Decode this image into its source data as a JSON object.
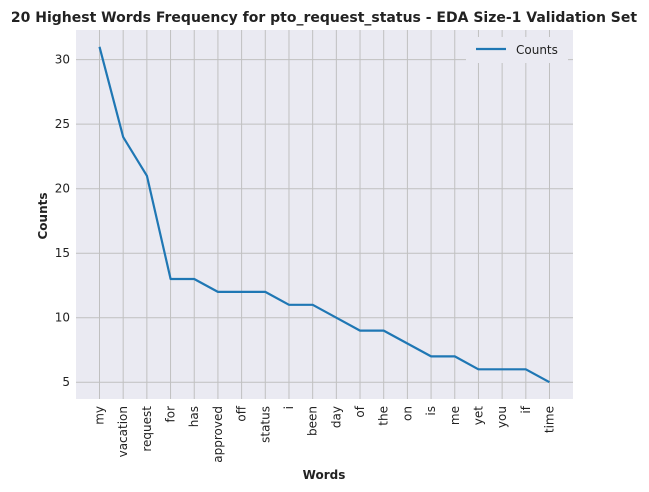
{
  "chart_data": {
    "type": "line",
    "title": "20 Highest Words Frequency for pto_request_status - EDA Size-1 Validation Set",
    "xlabel": "Words",
    "ylabel": "Counts",
    "categories": [
      "my",
      "vacation",
      "request",
      "for",
      "has",
      "approved",
      "off",
      "status",
      "i",
      "been",
      "day",
      "of",
      "the",
      "on",
      "is",
      "me",
      "yet",
      "you",
      "if",
      "time"
    ],
    "series": [
      {
        "name": "Counts",
        "values": [
          31,
          24,
          21,
          13,
          13,
          12,
          12,
          12,
          11,
          11,
          10,
          9,
          9,
          8,
          7,
          7,
          6,
          6,
          6,
          5
        ],
        "color": "#1f77b4"
      }
    ],
    "ylim": [
      3.7,
      32.3
    ],
    "yticks": [
      5,
      10,
      15,
      20,
      25,
      30
    ],
    "grid": true,
    "legend": "top-right",
    "plot_background": "#eaeaf2",
    "grid_color": "#c0c0c0"
  }
}
